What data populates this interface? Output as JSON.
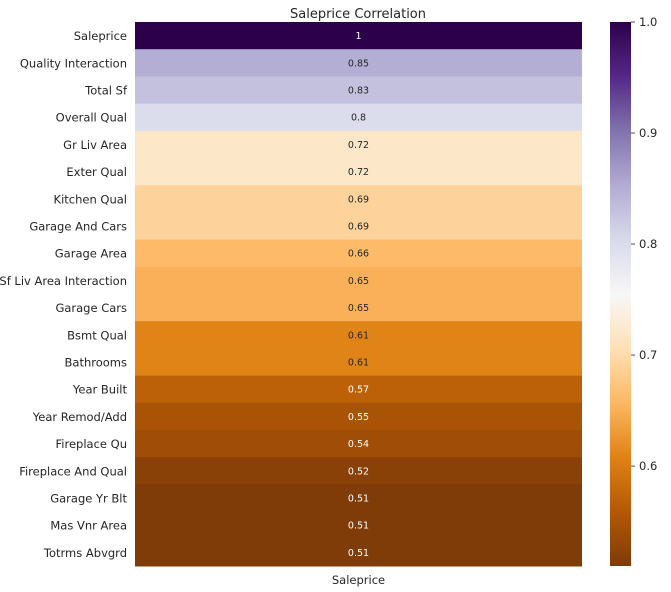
{
  "chart_data": {
    "type": "heatmap",
    "title": "Saleprice Correlation",
    "xlabel": "",
    "ylabel": "",
    "x_categories": [
      "Saleprice"
    ],
    "y_categories": [
      "Saleprice",
      "Quality Interaction",
      "Total Sf",
      "Overall Qual",
      "Gr Liv Area",
      "Exter Qual",
      "Kitchen Qual",
      "Garage And Cars",
      "Garage Area",
      "Sf Liv Area Interaction",
      "Garage Cars",
      "Bsmt Qual",
      "Bathrooms",
      "Year Built",
      "Year Remod/Add",
      "Fireplace Qu",
      "Fireplace And Qual",
      "Garage Yr Blt",
      "Mas Vnr Area",
      "Totrms Abvgrd"
    ],
    "values": [
      1,
      0.85,
      0.83,
      0.8,
      0.72,
      0.72,
      0.69,
      0.69,
      0.66,
      0.65,
      0.65,
      0.61,
      0.61,
      0.57,
      0.55,
      0.54,
      0.52,
      0.51,
      0.51,
      0.51
    ],
    "value_labels": [
      "1",
      "0.85",
      "0.83",
      "0.8",
      "0.72",
      "0.72",
      "0.69",
      "0.69",
      "0.66",
      "0.65",
      "0.65",
      "0.61",
      "0.61",
      "0.57",
      "0.55",
      "0.54",
      "0.52",
      "0.51",
      "0.51",
      "0.51"
    ],
    "colormap": "PuOr",
    "colorbar": {
      "vmin": 0.51,
      "vmax": 1.0,
      "ticks": [
        0.6,
        0.7,
        0.8,
        0.9,
        1.0
      ],
      "tick_labels": [
        "0.6",
        "0.7",
        "0.8",
        "0.9",
        "1.0"
      ]
    },
    "grid": false,
    "legend": "colorbar-right"
  }
}
